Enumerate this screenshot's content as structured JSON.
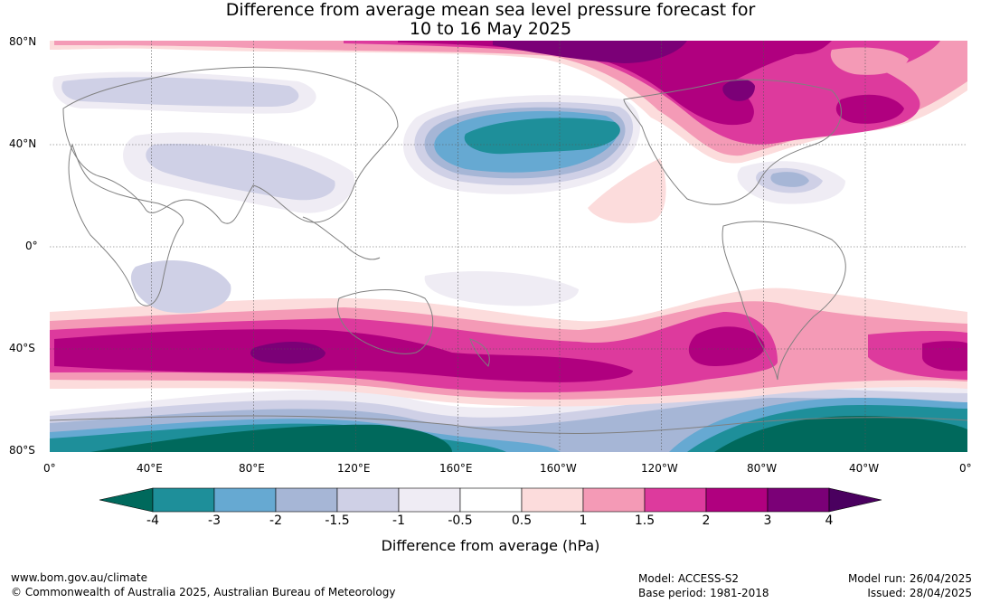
{
  "title": {
    "line1": "Difference from average mean sea level pressure forecast for",
    "line2": "10 to 16 May 2025"
  },
  "latitude_labels": [
    "80°N",
    "40°N",
    "0°",
    "40°S",
    "80°S"
  ],
  "longitude_labels": [
    "0°",
    "40°E",
    "80°E",
    "120°E",
    "160°E",
    "160°W",
    "120°W",
    "80°W",
    "40°W",
    "0°"
  ],
  "colorbar": {
    "title": "Difference from average (hPa)",
    "tick_labels": [
      "-4",
      "-3",
      "-2",
      "-1.5",
      "-1",
      "-0.5",
      "0.5",
      "1",
      "1.5",
      "2",
      "3",
      "4"
    ],
    "colors": [
      "#00695c",
      "#1e8f9a",
      "#66a9d2",
      "#a6b6d6",
      "#cfd0e6",
      "#efecf4",
      "#ffffff",
      "#fcdcdc",
      "#f49ab6",
      "#dd3a9d",
      "#b0007f",
      "#7b0077",
      "#4a005f"
    ]
  },
  "footer": {
    "url": "www.bom.gov.au/climate",
    "copyright": "© Commonwealth of Australia 2025, Australian Bureau of Meteorology",
    "model": "Model: ACCESS-S2",
    "base_period": "Base period: 1981-2018",
    "model_run": "Model run: 26/04/2025",
    "issued": "Issued: 28/04/2025"
  }
}
